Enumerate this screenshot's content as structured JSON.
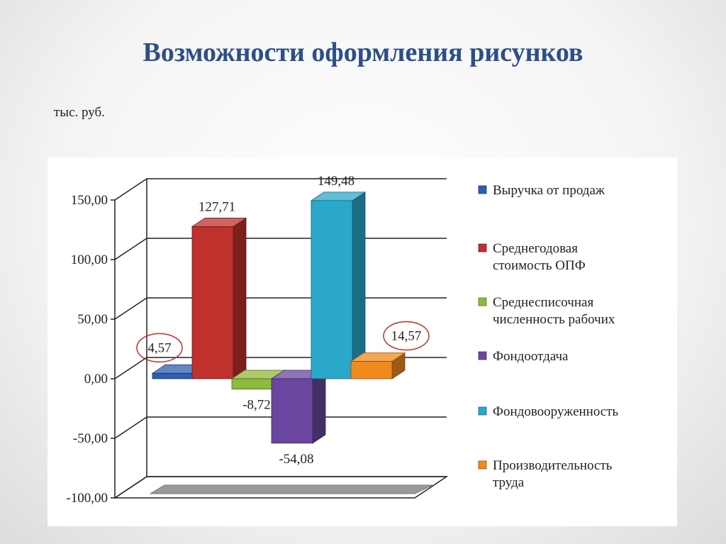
{
  "slide": {
    "title": "Возможности оформления рисунков",
    "units": "тыс. руб."
  },
  "chart_data": {
    "type": "bar",
    "title": "",
    "xlabel": "",
    "ylabel": "",
    "ylim": [
      -100,
      150
    ],
    "yticks": [
      "150,00",
      "100,00",
      "50,00",
      "0,00",
      "-50,00",
      "-100,00"
    ],
    "ytick_values": [
      150,
      100,
      50,
      0,
      -50,
      -100
    ],
    "grid": true,
    "legend_position": "right",
    "series": [
      {
        "name": "Выручка от продаж",
        "name_lines": [
          "Выручка от продаж"
        ],
        "value": 4.57,
        "label": "4,57",
        "color": "#2f5fb3",
        "circled": true
      },
      {
        "name": "Среднегодовая стоимость ОПФ",
        "name_lines": [
          "Среднегодовая",
          "стоимость ОПФ"
        ],
        "value": 127.71,
        "label": "127,71",
        "color": "#c0302c",
        "circled": false
      },
      {
        "name": "Среднесписочная численность рабочих",
        "name_lines": [
          "Среднесписочная",
          "численность рабочих"
        ],
        "value": -8.72,
        "label": "-8,72",
        "color": "#8fba3c",
        "circled": false
      },
      {
        "name": "Фондоотдача",
        "name_lines": [
          "Фондоотдача"
        ],
        "value": -54.08,
        "label": "-54,08",
        "color": "#6a46a0",
        "circled": false
      },
      {
        "name": "Фондовооруженность",
        "name_lines": [
          "Фондовооруженность"
        ],
        "value": 149.48,
        "label": "149,48",
        "color": "#2aa8cc",
        "circled": false
      },
      {
        "name": "Производительность труда",
        "name_lines": [
          "Производительность",
          "труда"
        ],
        "value": 14.57,
        "label": "14,57",
        "color": "#f08a1c",
        "circled": true
      }
    ]
  }
}
